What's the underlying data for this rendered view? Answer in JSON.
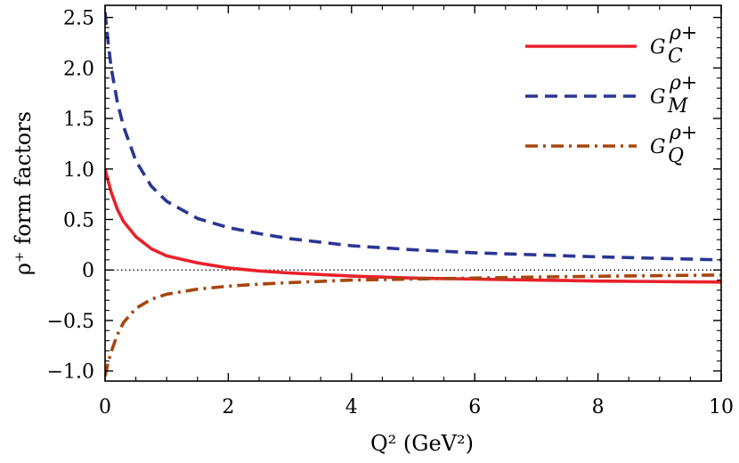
{
  "chart_data": {
    "type": "line",
    "xlabel": "Q² (GeV²)",
    "ylabel": "ρ⁺ form factors",
    "xlim": [
      0,
      10
    ],
    "ylim": [
      -1.1,
      2.62
    ],
    "grid": false,
    "legend_position": "top-right",
    "x_ticks": [
      0,
      2,
      4,
      6,
      8,
      10
    ],
    "x_tick_labels": [
      "0",
      "2",
      "4",
      "6",
      "8",
      "10"
    ],
    "y_ticks": [
      -1.0,
      -0.5,
      0,
      0.5,
      1.0,
      1.5,
      2.0,
      2.5
    ],
    "y_tick_labels": [
      "−1.0",
      "−0.5",
      "0",
      "0.5",
      "1.0",
      "1.5",
      "2.0",
      "2.5"
    ],
    "reference_line": {
      "y": 0,
      "style": "dotted"
    },
    "series": [
      {
        "name": "G_C^{ρ+}",
        "label_base": "G",
        "label_sub": "C",
        "label_sup": "ρ+",
        "color": "#e8212b",
        "style": "solid",
        "x": [
          0,
          0.05,
          0.1,
          0.2,
          0.3,
          0.5,
          0.75,
          1,
          1.5,
          2,
          2.5,
          3,
          4,
          5,
          6,
          7,
          8,
          9,
          10
        ],
        "y": [
          1.0,
          0.88,
          0.77,
          0.6,
          0.48,
          0.33,
          0.21,
          0.14,
          0.07,
          0.02,
          -0.01,
          -0.03,
          -0.06,
          -0.08,
          -0.09,
          -0.1,
          -0.11,
          -0.115,
          -0.12
        ]
      },
      {
        "name": "G_M^{ρ+}",
        "label_base": "G",
        "label_sub": "M",
        "label_sup": "ρ+",
        "color": "#2b3593",
        "style": "dashed",
        "x": [
          0,
          0.05,
          0.1,
          0.2,
          0.3,
          0.5,
          0.75,
          1,
          1.5,
          2,
          2.5,
          3,
          4,
          5,
          6,
          7,
          8,
          9,
          10
        ],
        "y": [
          2.55,
          2.25,
          2.0,
          1.66,
          1.42,
          1.08,
          0.83,
          0.68,
          0.51,
          0.42,
          0.36,
          0.31,
          0.24,
          0.2,
          0.17,
          0.15,
          0.13,
          0.115,
          0.1
        ]
      },
      {
        "name": "G_Q^{ρ+}",
        "label_base": "G",
        "label_sub": "Q",
        "label_sup": "ρ+",
        "color": "#a6460e",
        "style": "dashdot",
        "x": [
          0,
          0.05,
          0.1,
          0.2,
          0.3,
          0.5,
          0.75,
          1,
          1.5,
          2,
          2.5,
          3,
          4,
          5,
          6,
          7,
          8,
          9,
          10
        ],
        "y": [
          -1.05,
          -0.92,
          -0.81,
          -0.64,
          -0.52,
          -0.38,
          -0.29,
          -0.24,
          -0.19,
          -0.16,
          -0.14,
          -0.125,
          -0.1,
          -0.09,
          -0.08,
          -0.07,
          -0.062,
          -0.056,
          -0.05
        ]
      }
    ]
  }
}
